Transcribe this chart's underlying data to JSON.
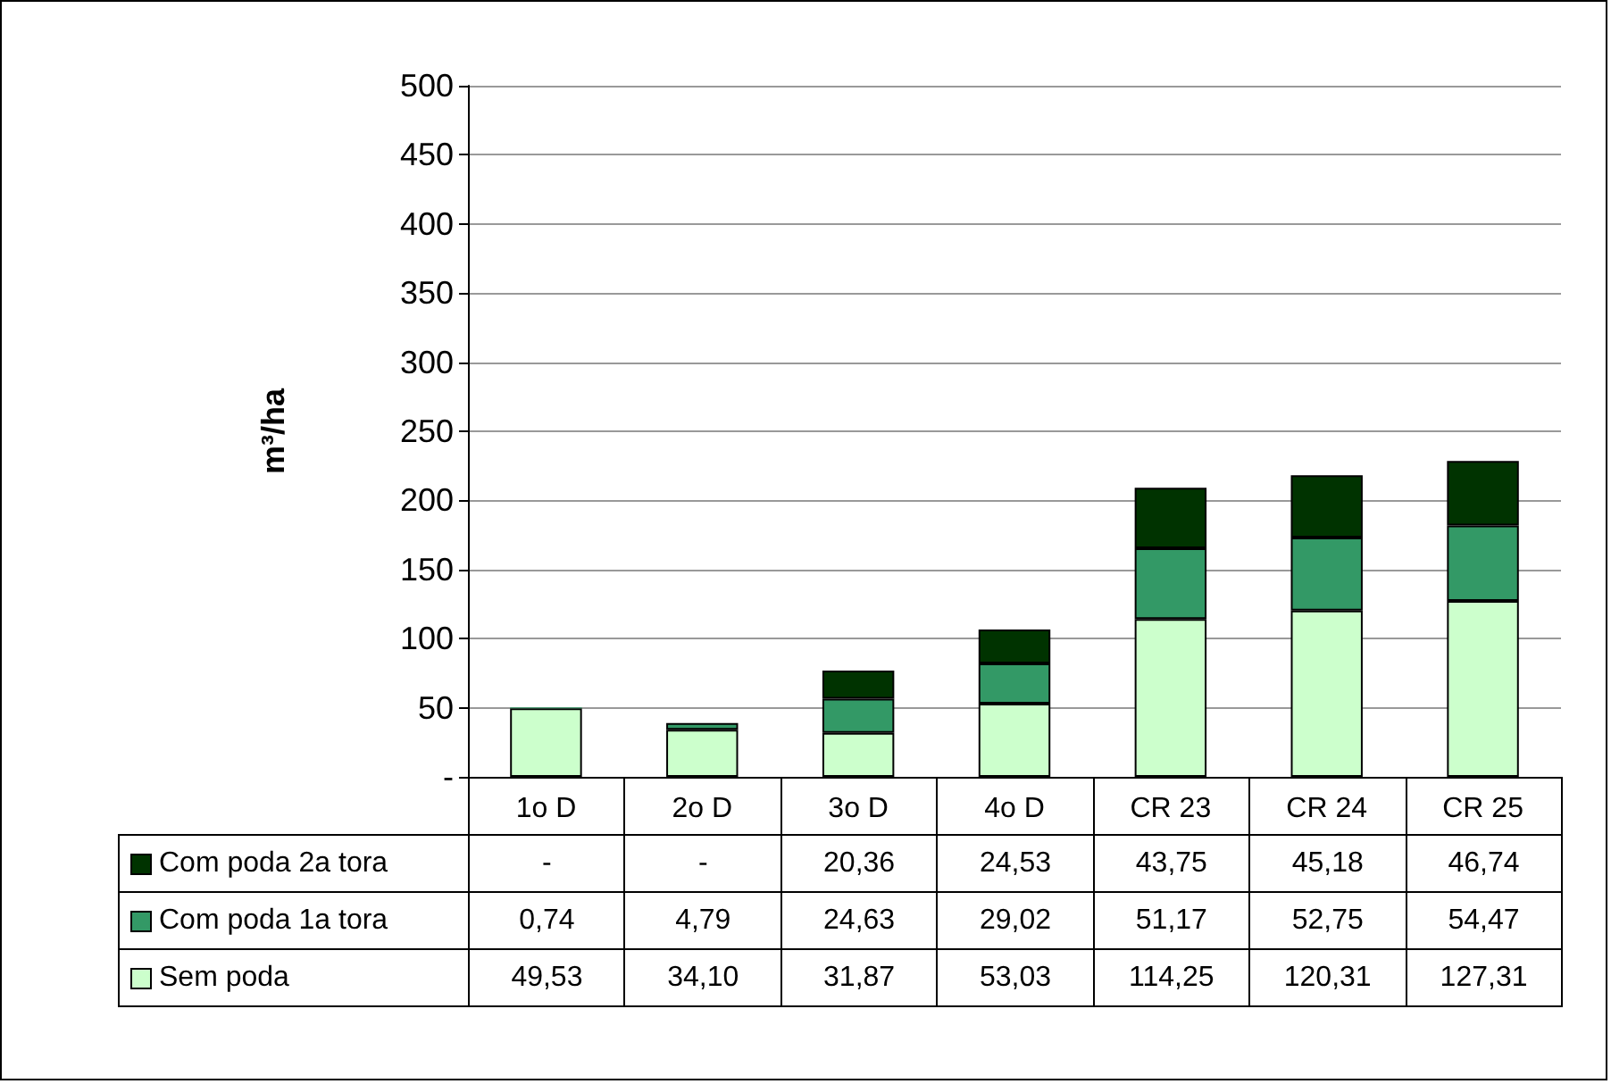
{
  "chart_data": {
    "type": "bar",
    "stacked": true,
    "ylabel": "m³/ha",
    "categories": [
      "1o D",
      "2o D",
      "3o D",
      "4o D",
      "CR 23",
      "CR 24",
      "CR 25"
    ],
    "series": [
      {
        "name": "Sem poda",
        "color": "#ccffcc",
        "values": [
          49.53,
          34.1,
          31.87,
          53.03,
          114.25,
          120.31,
          127.31
        ],
        "value_labels": [
          "49,53",
          "34,10",
          "31,87",
          "53,03",
          "114,25",
          "120,31",
          "127,31"
        ]
      },
      {
        "name": "Com poda 1a tora",
        "color": "#339966",
        "values": [
          0.74,
          4.79,
          24.63,
          29.02,
          51.17,
          52.75,
          54.47
        ],
        "value_labels": [
          "0,74",
          "4,79",
          "24,63",
          "29,02",
          "51,17",
          "52,75",
          "54,47"
        ]
      },
      {
        "name": "Com poda 2a tora",
        "color": "#003300",
        "values": [
          null,
          null,
          20.36,
          24.53,
          43.75,
          45.18,
          46.74
        ],
        "value_labels": [
          "-",
          "-",
          "20,36",
          "24,53",
          "43,75",
          "45,18",
          "46,74"
        ]
      }
    ],
    "ylim": [
      0,
      500
    ],
    "yticks": [
      {
        "value": 0,
        "label": "-"
      },
      50,
      100,
      150,
      200,
      250,
      300,
      350,
      400,
      450,
      500
    ],
    "grid": "y",
    "legend": "bottom"
  }
}
